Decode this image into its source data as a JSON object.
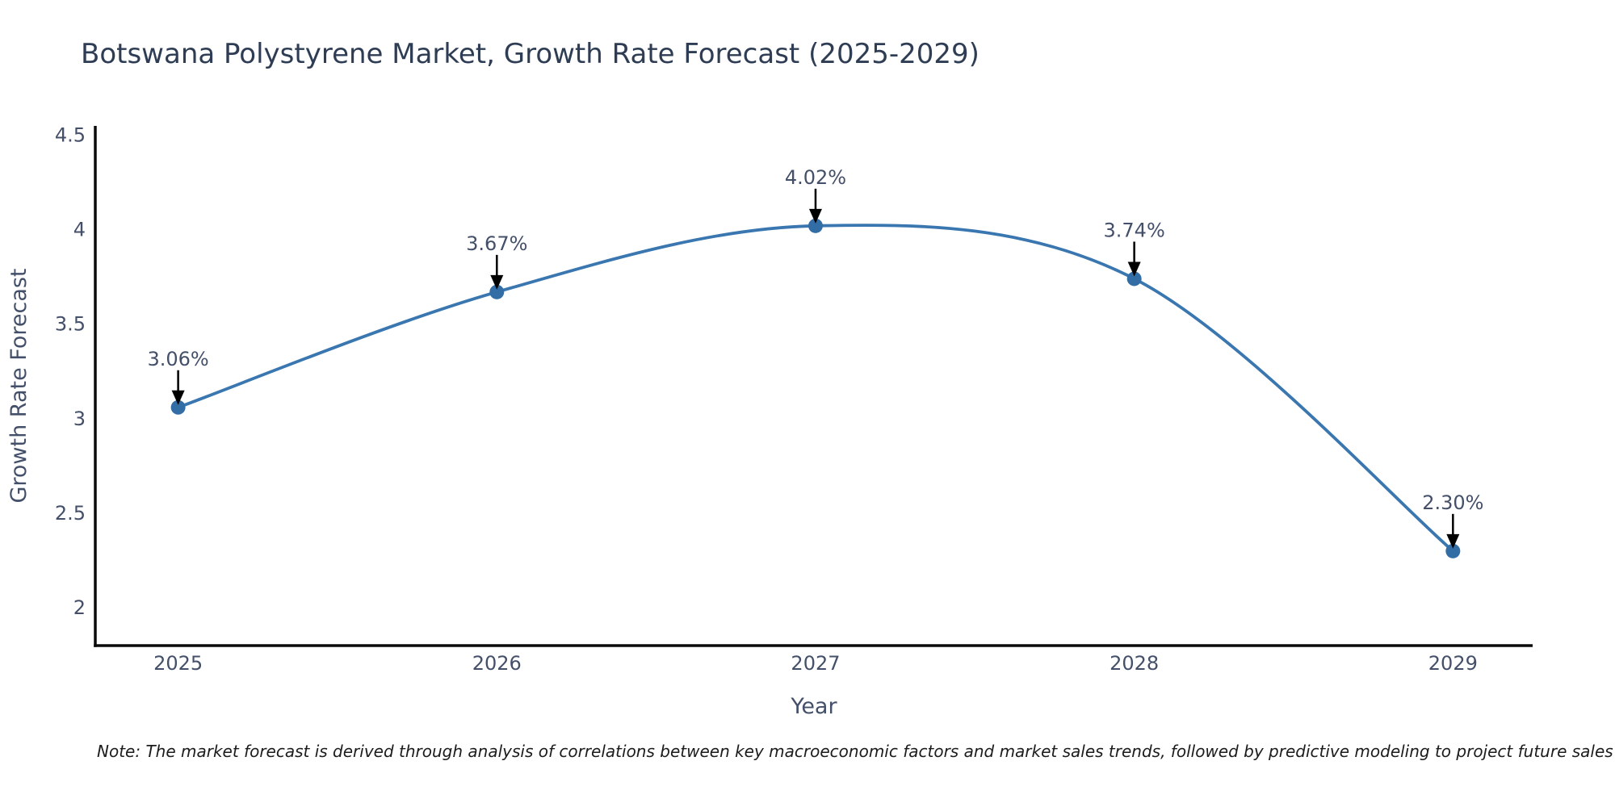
{
  "chart_data": {
    "type": "line",
    "title": "Botswana Polystyrene Market, Growth Rate Forecast (2025-2029)",
    "xlabel": "Year",
    "ylabel": "Growth Rate Forecast",
    "x": [
      2025,
      2026,
      2027,
      2028,
      2029
    ],
    "x_tick_labels": [
      "2025",
      "2026",
      "2027",
      "2028",
      "2029"
    ],
    "series": [
      {
        "name": "Growth Rate Forecast",
        "values": [
          3.06,
          3.67,
          4.02,
          3.74,
          2.3
        ],
        "point_labels": [
          "3.06%",
          "3.67%",
          "4.02%",
          "3.74%",
          "2.30%"
        ]
      }
    ],
    "y_tick_values": [
      2,
      2.5,
      3,
      3.5,
      4,
      4.5
    ],
    "y_tick_labels": [
      "2",
      "2.5",
      "3",
      "3.5",
      "4",
      "4.5"
    ],
    "xlim": [
      2024.74,
      2029.25
    ],
    "ylim": [
      1.8,
      4.54
    ],
    "grid": false,
    "legend_position": "none",
    "colors": {
      "line": "#3a77b0",
      "marker": "#336da6",
      "spine": "#0a0a0a",
      "arrow": "#000000",
      "tick_text": "#44506a",
      "title_text": "#2e3d54",
      "note_text": "#1c1c1c"
    }
  },
  "note": {
    "text": "Note: The market forecast is derived through analysis of correlations between key macroeconomic factors and market sales trends, followed by predictive modeling to project future sales"
  }
}
